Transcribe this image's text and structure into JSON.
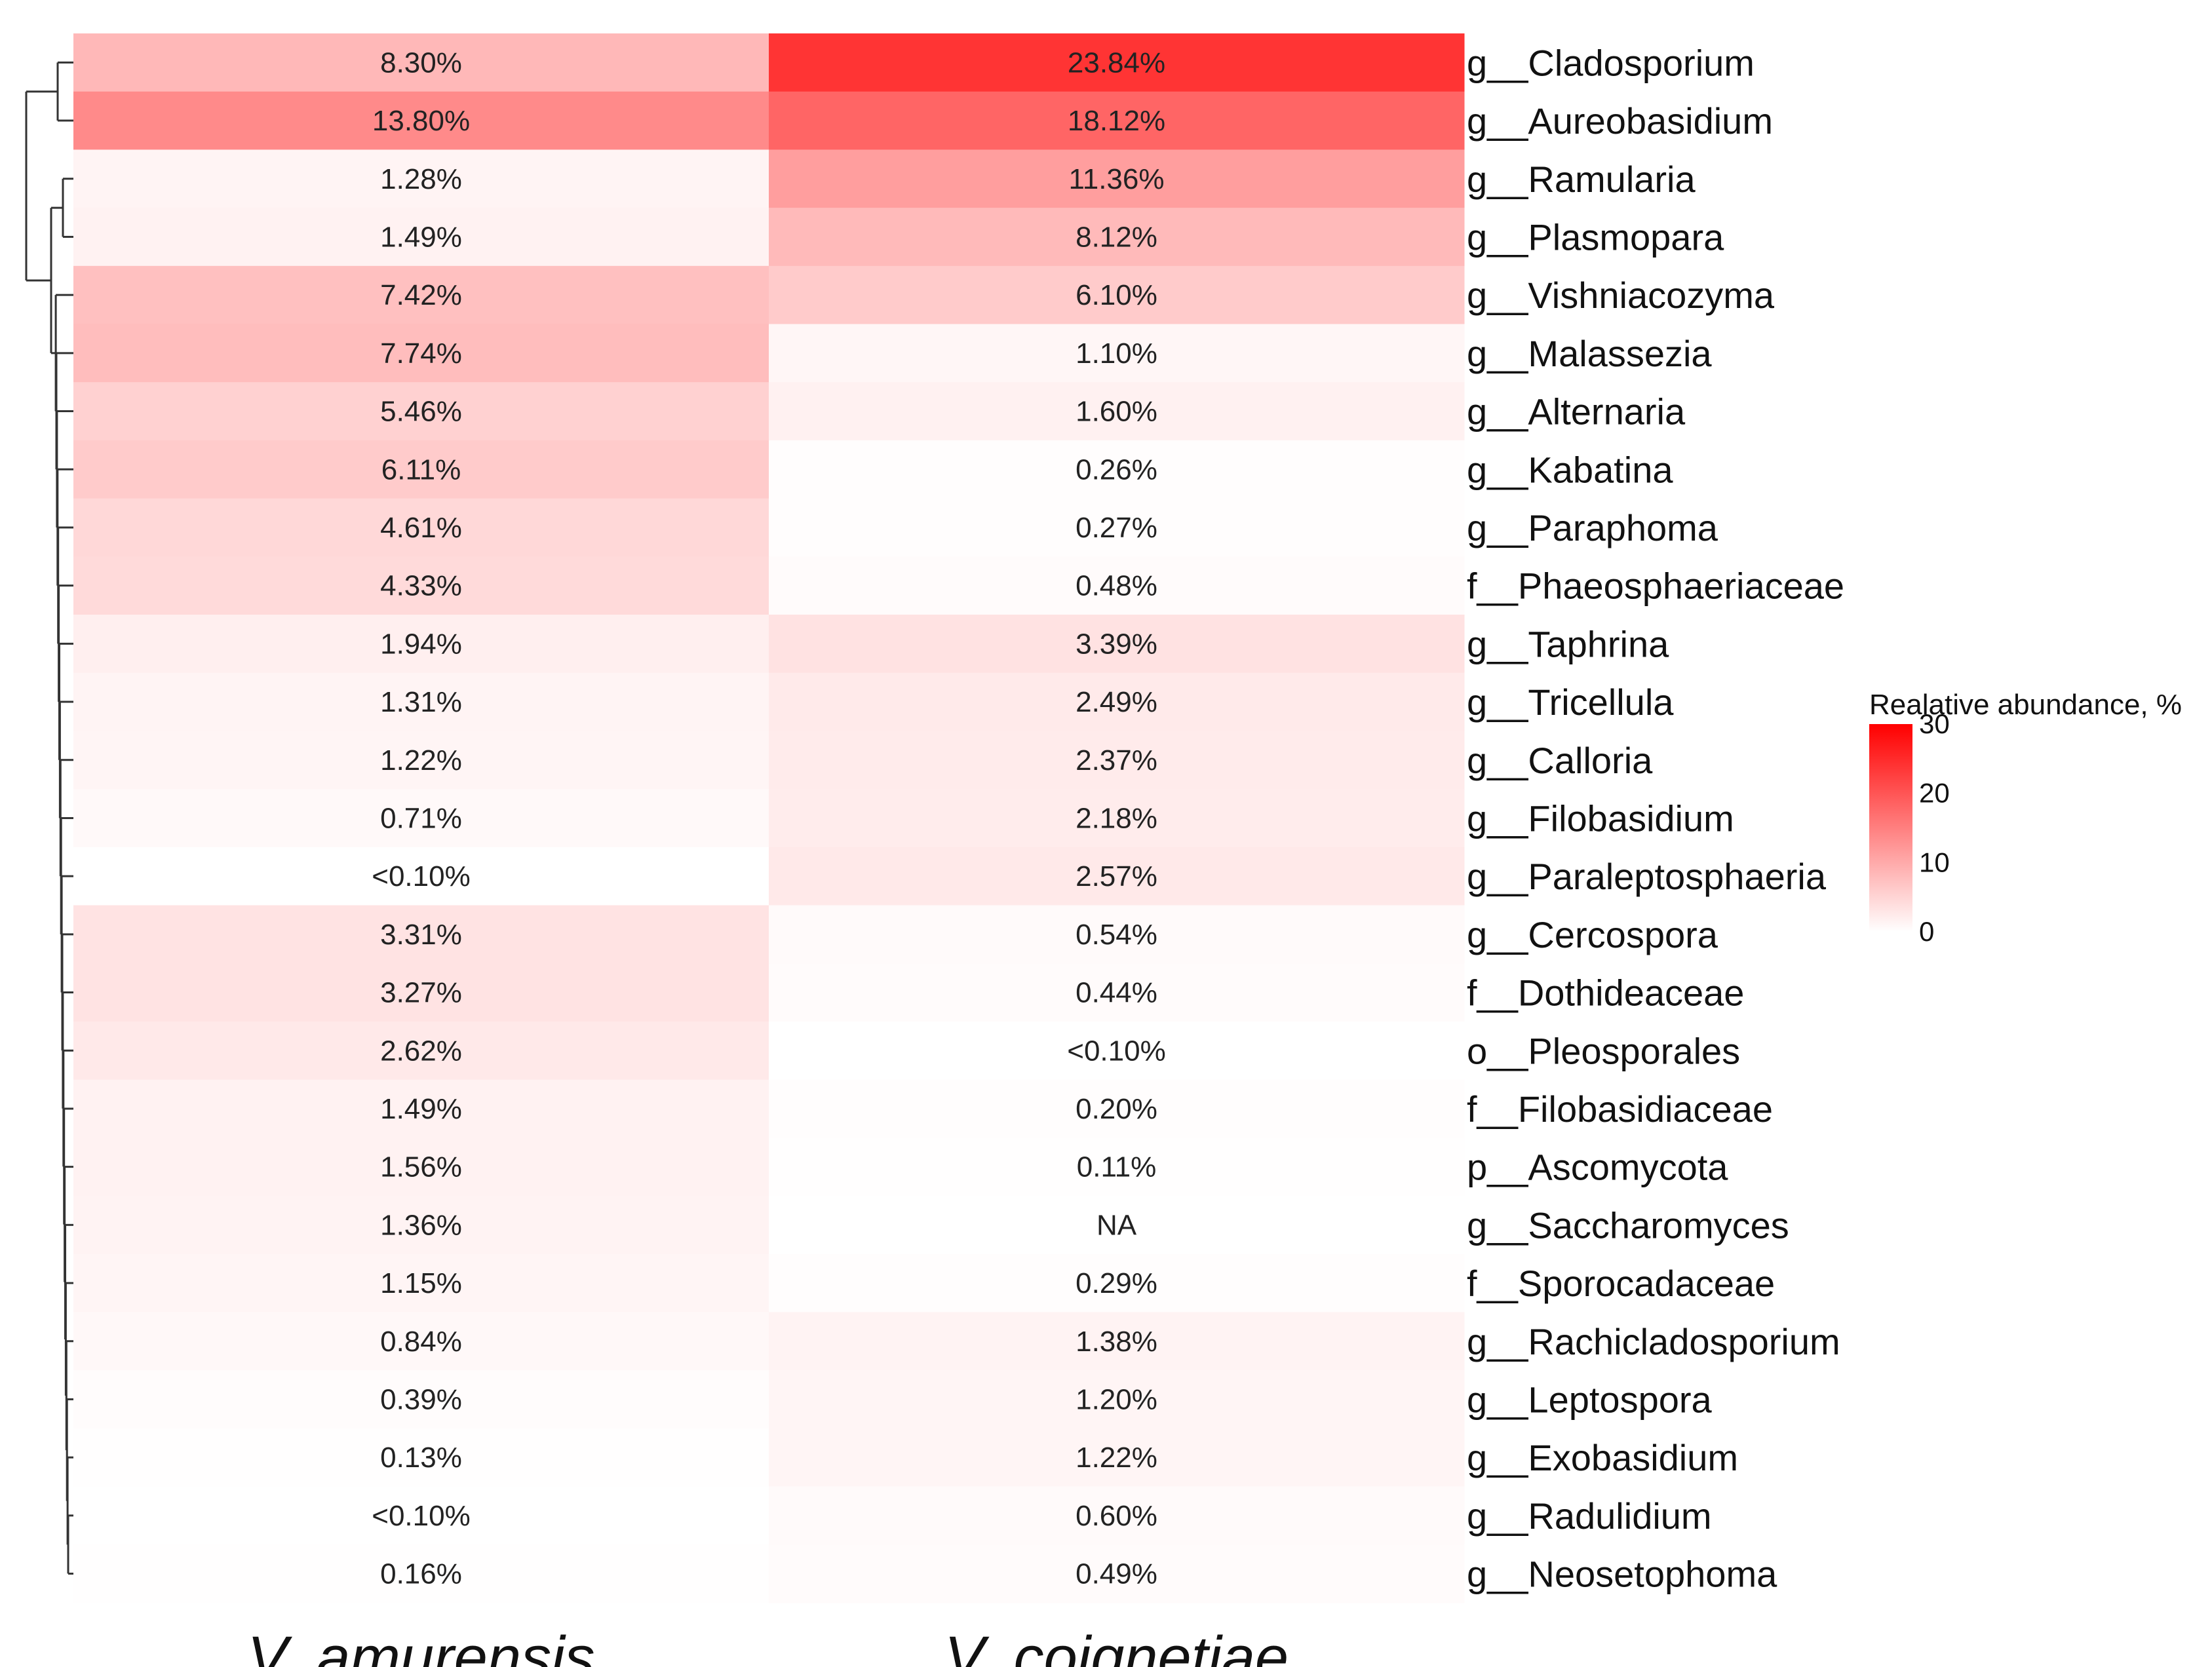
{
  "chart_data": {
    "type": "heatmap",
    "title": "",
    "columns": [
      "V. amurensis",
      "V. coignetiae"
    ],
    "rows": [
      "g__Cladosporium",
      "g__Aureobasidium",
      "g__Ramularia",
      "g__Plasmopara",
      "g__Vishniacozyma",
      "g__Malassezia",
      "g__Alternaria",
      "g__Kabatina",
      "g__Paraphoma",
      "f__Phaeosphaeriaceae",
      "g__Taphrina",
      "g__Tricellula",
      "g__Calloria",
      "g__Filobasidium",
      "g__Paraleptosphaeria",
      "g__Cercospora",
      "f__Dothideaceae",
      "o__Pleosporales",
      "f__Filobasidiaceae",
      "p__Ascomycota",
      "g__Saccharomyces",
      "f__Sporocadaceae",
      "g__Rachicladosporium",
      "g__Leptospora",
      "g__Exobasidium",
      "g__Radulidium",
      "g__Neosetophoma"
    ],
    "values": [
      [
        8.3,
        23.84
      ],
      [
        13.8,
        18.12
      ],
      [
        1.28,
        11.36
      ],
      [
        1.49,
        8.12
      ],
      [
        7.42,
        6.1
      ],
      [
        7.74,
        1.1
      ],
      [
        5.46,
        1.6
      ],
      [
        6.11,
        0.26
      ],
      [
        4.61,
        0.27
      ],
      [
        4.33,
        0.48
      ],
      [
        1.94,
        3.39
      ],
      [
        1.31,
        2.49
      ],
      [
        1.22,
        2.37
      ],
      [
        0.71,
        2.18
      ],
      [
        0.05,
        2.57
      ],
      [
        3.31,
        0.54
      ],
      [
        3.27,
        0.44
      ],
      [
        2.62,
        0.05
      ],
      [
        1.49,
        0.2
      ],
      [
        1.56,
        0.11
      ],
      [
        1.36,
        null
      ],
      [
        1.15,
        0.29
      ],
      [
        0.84,
        1.38
      ],
      [
        0.39,
        1.2
      ],
      [
        0.13,
        1.22
      ],
      [
        0.05,
        0.6
      ],
      [
        0.16,
        0.49
      ]
    ],
    "labels": [
      [
        "8.30%",
        "23.84%"
      ],
      [
        "13.80%",
        "18.12%"
      ],
      [
        "1.28%",
        "11.36%"
      ],
      [
        "1.49%",
        "8.12%"
      ],
      [
        "7.42%",
        "6.10%"
      ],
      [
        "7.74%",
        "1.10%"
      ],
      [
        "5.46%",
        "1.60%"
      ],
      [
        "6.11%",
        "0.26%"
      ],
      [
        "4.61%",
        "0.27%"
      ],
      [
        "4.33%",
        "0.48%"
      ],
      [
        "1.94%",
        "3.39%"
      ],
      [
        "1.31%",
        "2.49%"
      ],
      [
        "1.22%",
        "2.37%"
      ],
      [
        "0.71%",
        "2.18%"
      ],
      [
        "<0.10%",
        "2.57%"
      ],
      [
        "3.31%",
        "0.54%"
      ],
      [
        "3.27%",
        "0.44%"
      ],
      [
        "2.62%",
        "<0.10%"
      ],
      [
        "1.49%",
        "0.20%"
      ],
      [
        "1.56%",
        "0.11%"
      ],
      [
        "1.36%",
        "NA"
      ],
      [
        "1.15%",
        "0.29%"
      ],
      [
        "0.84%",
        "1.38%"
      ],
      [
        "0.39%",
        "1.20%"
      ],
      [
        "0.13%",
        "1.22%"
      ],
      [
        "<0.10%",
        "0.60%"
      ],
      [
        "0.16%",
        "0.49%"
      ]
    ],
    "colorscale": {
      "title": "Realative abundance, %",
      "min": 0,
      "max": 30,
      "ticks": [
        "30",
        "20",
        "10",
        "0"
      ],
      "tick_values": [
        30,
        20,
        10,
        0
      ],
      "low_color": "#ffffff",
      "high_color": "#ff0000"
    },
    "dendrogram": "left row dendrogram",
    "legend_position": "right"
  }
}
